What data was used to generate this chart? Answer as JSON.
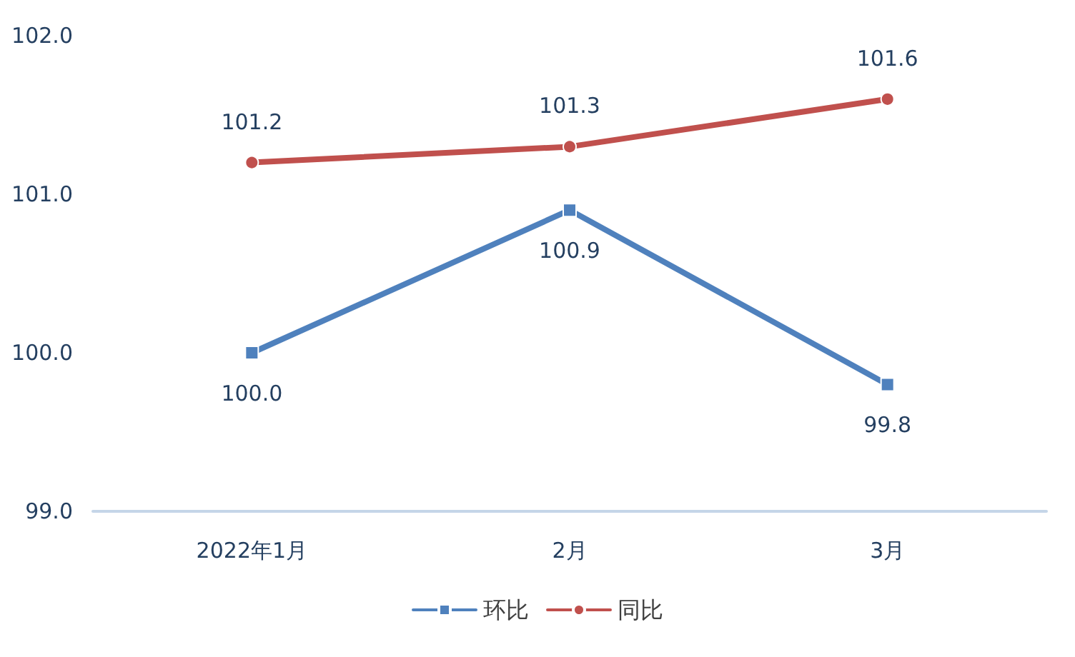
{
  "chart_data": {
    "type": "line",
    "categories": [
      "2022年1月",
      "2月",
      "3月"
    ],
    "series": [
      {
        "name": "环比",
        "color": "#4f81bd",
        "marker": "square",
        "values": [
          100.0,
          100.9,
          99.8
        ],
        "value_labels": [
          "100.0",
          "100.9",
          "99.8"
        ]
      },
      {
        "name": "同比",
        "color": "#c0504d",
        "marker": "circle",
        "values": [
          101.2,
          101.3,
          101.6
        ],
        "value_labels": [
          "101.2",
          "101.3",
          "101.6"
        ]
      }
    ],
    "ylim": [
      99,
      102
    ],
    "yticks": [
      {
        "value": 99,
        "label": "99.0"
      },
      {
        "value": 100,
        "label": "100.0"
      },
      {
        "value": 101,
        "label": "101.0"
      },
      {
        "value": 102,
        "label": "102.0"
      }
    ],
    "grid": false,
    "legend": "bottom"
  }
}
